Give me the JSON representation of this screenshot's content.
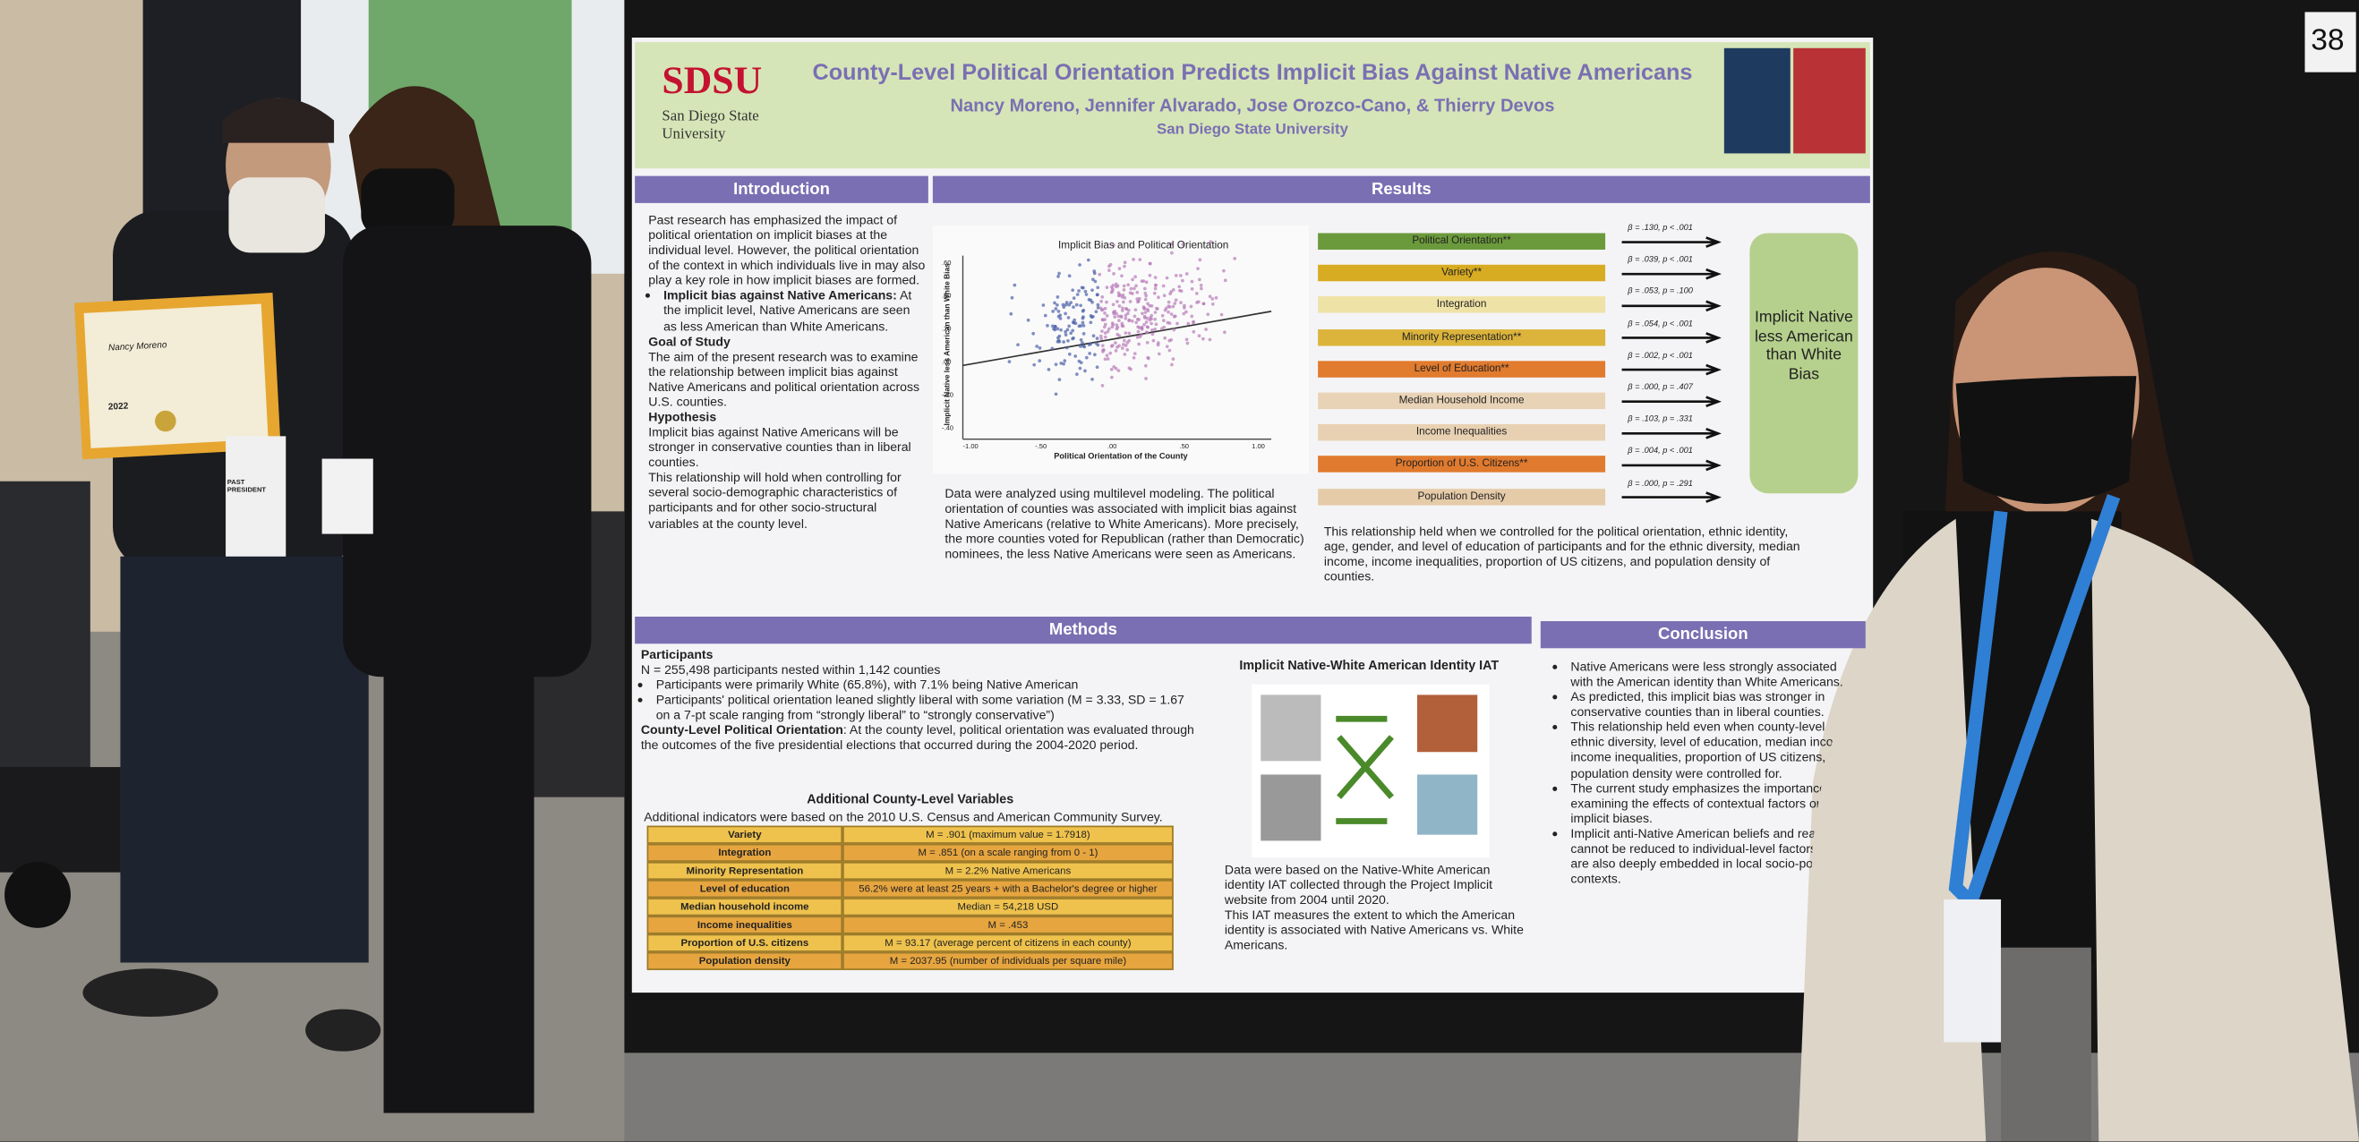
{
  "badge": "38",
  "certificate": {
    "name": "Nancy Moreno",
    "year": "2022"
  },
  "name_badge": "PAST PRESIDENT",
  "poster": {
    "logo": "SDSU",
    "university": "San Diego State University",
    "title": "County-Level Political Orientation Predicts Implicit Bias Against Native Americans",
    "authors": "Nancy Moreno, Jennifer Alvarado, Jose Orozco-Cano, & Thierry Devos",
    "affiliation": "San Diego State University",
    "introduction": {
      "heading": "Introduction",
      "p1": "Past research has emphasized the impact of political orientation on implicit biases at the individual level. However, the political orientation of the context in which individuals live in may also play a key role in how implicit biases are formed.",
      "bullet_lead": "Implicit bias against Native Americans:",
      "bullet_text": "At the implicit level, Native Americans are seen as less American than White Americans.",
      "goal_heading": "Goal of Study",
      "goal": "The aim of the present research was to examine the relationship between implicit bias against Native Americans and political orientation across U.S. counties.",
      "hypothesis_heading": "Hypothesis",
      "hypotheses": [
        "Implicit bias against Native Americans will be stronger in conservative counties than in liberal counties.",
        "This relationship will hold when controlling for several socio-demographic characteristics of participants and for other socio-structural variables at the county level."
      ]
    },
    "results": {
      "heading": "Results",
      "chart_title": "Implicit Bias and Political Orientation",
      "y_label": "Implicit Native less American than White Bias",
      "x_label": "Political Orientation of the County",
      "x_ticks": [
        "-1.00",
        "-.50",
        ".00",
        ".50",
        "1.00"
      ],
      "y_ticks": [
        ".60",
        ".40",
        ".20",
        ".00",
        "-.20",
        "-.40"
      ],
      "predictors": [
        {
          "name": "Political Orientation**",
          "stat": "β = .130, p < .001",
          "color": "#6b9a3c"
        },
        {
          "name": "Variety**",
          "stat": "β = .039, p < .001",
          "color": "#d8ac22"
        },
        {
          "name": "Integration",
          "stat": "β = .053, p = .100",
          "color": "#efe2a6"
        },
        {
          "name": "Minority Representation**",
          "stat": "β = .054, p < .001",
          "color": "#dcb43c"
        },
        {
          "name": "Level of Education**",
          "stat": "β = .002, p < .001",
          "color": "#e17b2e"
        },
        {
          "name": "Median Household Income",
          "stat": "β = .000, p = .407",
          "color": "#e9d3b6"
        },
        {
          "name": "Income Inequalities",
          "stat": "β = .103, p = .331",
          "color": "#e8d1b2"
        },
        {
          "name": "Proportion of U.S. Citizens**",
          "stat": "β = .004, p < .001",
          "color": "#e07a2e"
        },
        {
          "name": "Population Density",
          "stat": "β = .000, p = .291",
          "color": "#e6cba9"
        }
      ],
      "outcome": "Implicit Native less American than White Bias",
      "caption1": "Data were analyzed using multilevel modeling. The political orientation of counties was associated with implicit bias against Native Americans (relative to White Americans). More precisely, the more counties voted for Republican (rather than Democratic) nominees, the less Native Americans were seen as Americans.",
      "caption2": "This relationship held when we controlled for the political orientation, ethnic identity, age, gender, and level of education of participants and for the ethnic diversity, median income, income inequalities, proportion of US citizens, and population density of counties."
    },
    "methods": {
      "heading": "Methods",
      "participants_heading": "Participants",
      "n_line": "N = 255,498 participants nested within 1,142 counties",
      "bullets": [
        "Participants were primarily White (65.8%), with 7.1% being Native American",
        "Participants' political orientation leaned slightly liberal with some variation (M = 3.33, SD = 1.67 on a 7-pt scale ranging from “strongly liberal” to “strongly conservative”)"
      ],
      "county_heading": "County-Level Political Orientation",
      "county_text": ": At the county level, political orientation was evaluated through the outcomes of the five presidential elections that occurred during the 2004-2020 period.",
      "additional_heading": "Additional County-Level Variables",
      "additional_text": "Additional indicators were based on the 2010 U.S. Census and American Community Survey.",
      "table": [
        [
          "Variety",
          "M = .901 (maximum value = 1.7918)"
        ],
        [
          "Integration",
          "M = .851 (on a scale ranging from 0 - 1)"
        ],
        [
          "Minority Representation",
          "M = 2.2% Native Americans"
        ],
        [
          "Level of education",
          "56.2% were at least 25 years + with a Bachelor's degree or higher"
        ],
        [
          "Median household income",
          "Median = 54,218 USD"
        ],
        [
          "Income inequalities",
          "M = .453"
        ],
        [
          "Proportion of U.S. citizens",
          "M = 93.17 (average percent of citizens in each county)"
        ],
        [
          "Population density",
          "M = 2037.95 (number of individuals per square mile)"
        ]
      ]
    },
    "iat": {
      "title": "Implicit Native-White American Identity IAT",
      "captions": [
        "Data were based on the Native-White American identity IAT collected through the Project Implicit website from 2004 until 2020.",
        "This IAT measures the extent to which the American identity is associated with Native Americans vs. White Americans."
      ]
    },
    "conclusion": {
      "heading": "Conclusion",
      "bullets": [
        "Native Americans were less strongly associated with the American identity than White Americans.",
        "As predicted, this implicit bias was stronger in conservative counties than in liberal counties.",
        "This relationship held even when county-level ethnic diversity, level of education, median income, income inequalities, proportion of US citizens, and population density were controlled for.",
        "The current study emphasizes the importance of examining the effects of contextual factors on implicit biases.",
        "Implicit anti-Native American beliefs and reactions cannot be reduced to individual-level factors; they are also deeply embedded in local socio-political contexts."
      ]
    }
  }
}
